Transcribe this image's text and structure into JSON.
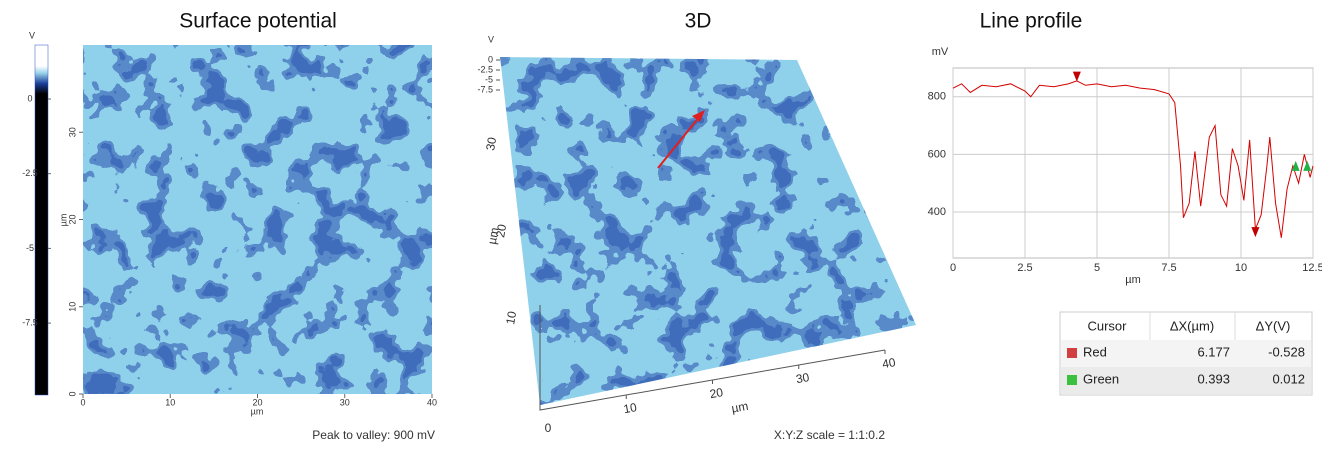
{
  "surface_potential": {
    "title": "Surface potential",
    "colorbar": {
      "unit": "V",
      "ticks": [
        0,
        -2.5,
        -5,
        -7.5
      ]
    },
    "y_axis": {
      "label": "µm",
      "ticks": [
        0,
        10,
        20,
        30
      ]
    },
    "x_axis": {
      "label": "µm",
      "ticks": [
        0,
        10,
        20,
        30,
        40
      ]
    },
    "footer": "Peak to valley: 900 mV"
  },
  "view_3d": {
    "title": "3D",
    "z_axis": {
      "unit": "V",
      "ticks": [
        0,
        -2.5,
        -5,
        -7.5
      ]
    },
    "y_axis": {
      "label": "µm",
      "ticks": [
        10,
        20,
        30
      ]
    },
    "x_axis": {
      "label": "µm",
      "ticks": [
        10,
        20,
        30,
        40
      ]
    },
    "origin": 0,
    "footer": "X:Y:Z scale = 1:1:0.2"
  },
  "line_profile": {
    "type": "line",
    "title": "Line profile",
    "ylabel": "mV",
    "xlabel": "µm",
    "color": "#d40000",
    "x": [
      0,
      0.3,
      0.6,
      1,
      1.5,
      2,
      2.5,
      2.7,
      3,
      3.5,
      4,
      4.3,
      4.6,
      5,
      5.5,
      6,
      6.5,
      7,
      7.5,
      7.7,
      7.9,
      8,
      8.2,
      8.4,
      8.6,
      8.9,
      9.1,
      9.3,
      9.5,
      9.7,
      9.9,
      10.1,
      10.3,
      10.5,
      10.7,
      10.9,
      11,
      11.2,
      11.4,
      11.6,
      11.8,
      12,
      12.2,
      12.4,
      12.5
    ],
    "values": [
      830,
      845,
      815,
      840,
      835,
      845,
      820,
      800,
      840,
      835,
      845,
      855,
      840,
      845,
      835,
      840,
      830,
      825,
      810,
      780,
      560,
      380,
      430,
      610,
      420,
      660,
      700,
      460,
      420,
      620,
      560,
      440,
      650,
      340,
      390,
      560,
      660,
      430,
      310,
      480,
      560,
      500,
      600,
      520,
      560
    ],
    "xlim": [
      0,
      12.5
    ],
    "ylim": [
      240,
      900
    ],
    "xticks": [
      0,
      2.5,
      5,
      7.5,
      10,
      12.5
    ],
    "yticks": [
      400,
      600,
      800
    ],
    "grid": true,
    "markers": [
      {
        "x": 4.3,
        "y": 870,
        "color": "#c00000",
        "dir": "down"
      },
      {
        "x": 10.5,
        "y": 330,
        "color": "#c00000",
        "dir": "down"
      },
      {
        "x": 11.9,
        "y": 560,
        "color": "#22b04a",
        "dir": "up"
      },
      {
        "x": 12.3,
        "y": 560,
        "color": "#22b04a",
        "dir": "up"
      }
    ]
  },
  "cursor_table": {
    "header": [
      "Cursor",
      "ΔX(µm)",
      "ΔY(V)"
    ],
    "rows": [
      [
        "Red",
        6.177,
        -0.528
      ],
      [
        "Green",
        0.393,
        0.012
      ]
    ],
    "swatches": [
      "#d04040",
      "#3cc040"
    ]
  }
}
